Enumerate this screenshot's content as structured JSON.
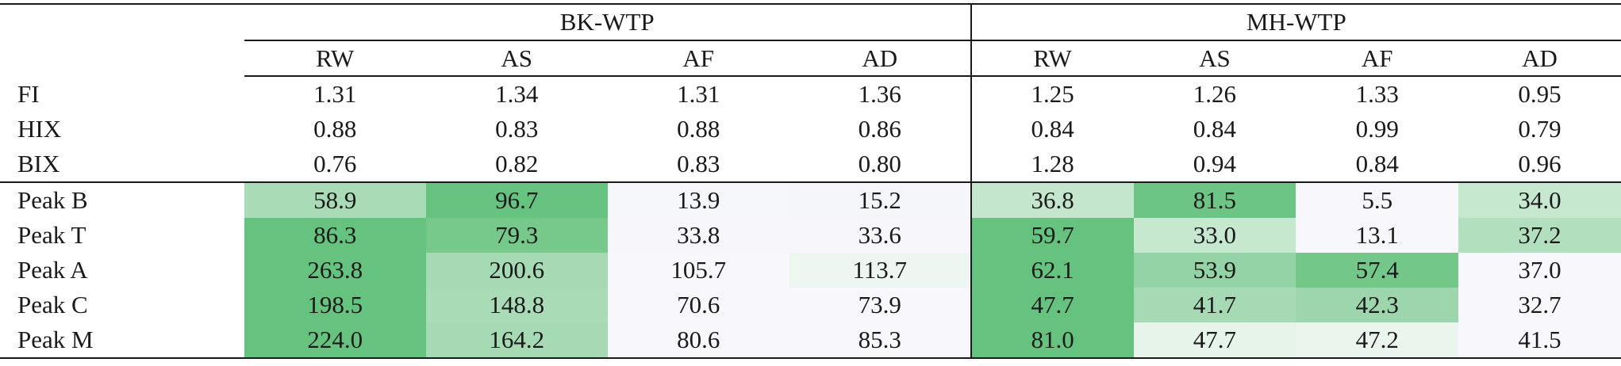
{
  "groups": [
    "BK-WTP",
    "MH-WTP"
  ],
  "subcols": [
    "RW",
    "AS",
    "AF",
    "AD",
    "RW",
    "AS",
    "AF",
    "AD"
  ],
  "metric_rows": [
    {
      "label": "FI",
      "values": [
        "1.31",
        "1.34",
        "1.31",
        "1.36",
        "1.25",
        "1.26",
        "1.33",
        "0.95"
      ]
    },
    {
      "label": "HIX",
      "values": [
        "0.88",
        "0.83",
        "0.88",
        "0.86",
        "0.84",
        "0.84",
        "0.99",
        "0.79"
      ]
    },
    {
      "label": "BIX",
      "values": [
        "0.76",
        "0.82",
        "0.83",
        "0.80",
        "1.28",
        "0.94",
        "0.84",
        "0.96"
      ]
    }
  ],
  "peak_rows": [
    {
      "label": "Peak B",
      "values": [
        "58.9",
        "96.7",
        "13.9",
        "15.2",
        "36.8",
        "81.5",
        "5.5",
        "34.0"
      ],
      "colors": [
        "#a8dbb6",
        "#66c27f",
        "#f6f7fb",
        "#f5f6fa",
        "#c3e6cc",
        "#6cc485",
        "#f8f8fc",
        "#c6e8cf"
      ]
    },
    {
      "label": "Peak T",
      "values": [
        "86.3",
        "79.3",
        "33.8",
        "33.6",
        "59.7",
        "33.0",
        "13.1",
        "37.2"
      ],
      "colors": [
        "#66c27f",
        "#76c88b",
        "#f7f7fb",
        "#f7f7fb",
        "#66c27f",
        "#c6e8cf",
        "#f8f8fc",
        "#b2dfbe"
      ]
    },
    {
      "label": "Peak A",
      "values": [
        "263.8",
        "200.6",
        "105.7",
        "113.7",
        "62.1",
        "53.9",
        "57.4",
        "37.0"
      ],
      "colors": [
        "#66c27f",
        "#a6dab4",
        "#f8f8fc",
        "#eef6f1",
        "#66c27f",
        "#93d3a5",
        "#73c789",
        "#f8f8fc"
      ]
    },
    {
      "label": "Peak C",
      "values": [
        "198.5",
        "148.8",
        "70.6",
        "73.9",
        "47.7",
        "41.7",
        "42.3",
        "32.7"
      ],
      "colors": [
        "#66c27f",
        "#a8dbb6",
        "#f8f8fc",
        "#f8f8fc",
        "#66c27f",
        "#a6dab4",
        "#9dd6ad",
        "#f8f8fc"
      ]
    },
    {
      "label": "Peak M",
      "values": [
        "224.0",
        "164.2",
        "80.6",
        "85.3",
        "81.0",
        "47.7",
        "47.2",
        "41.5"
      ],
      "colors": [
        "#66c27f",
        "#a6dab4",
        "#f8f8fc",
        "#f8f8fc",
        "#66c27f",
        "#e6f4ea",
        "#e9f5ed",
        "#f8f8fc"
      ]
    }
  ]
}
